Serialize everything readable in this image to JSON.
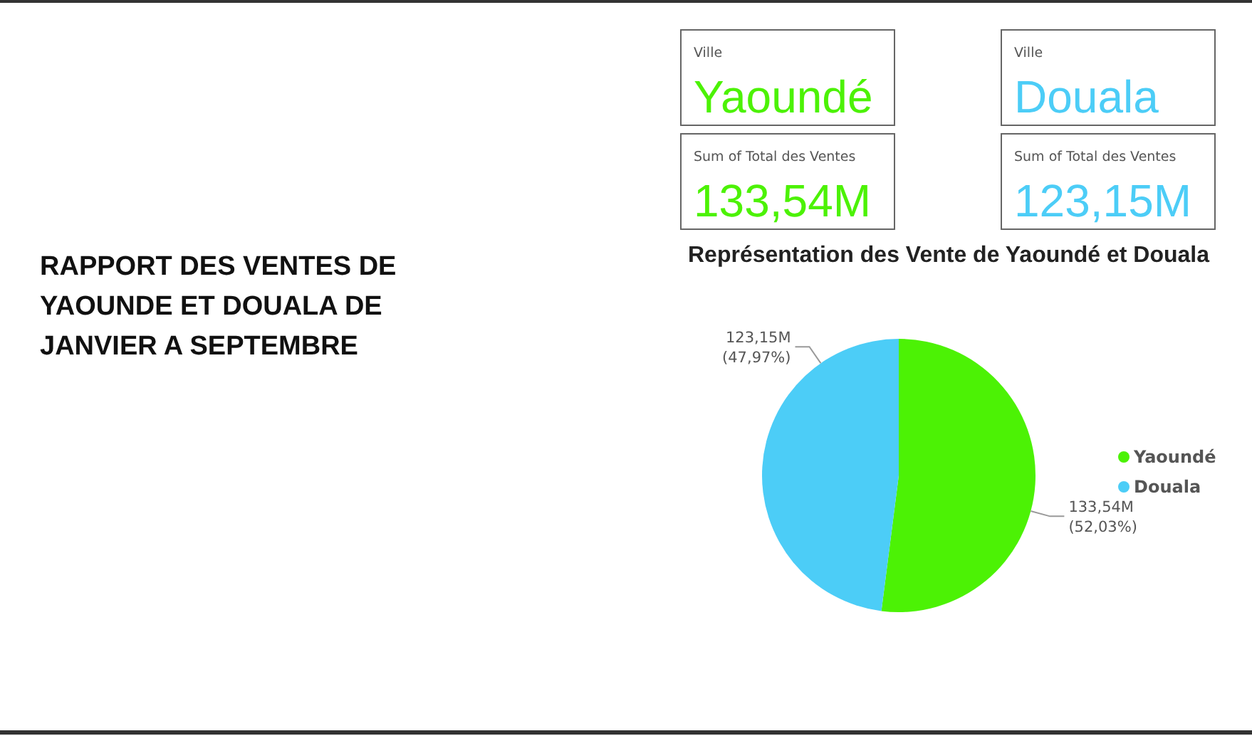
{
  "chart_data": [
    {
      "type": "other",
      "title": "RAPPORT DES VENTES DE YAOUNDE ET DOUALA DE JANVIER A SEPTEMBRE"
    },
    {
      "type": "other",
      "xlabel": "Ville",
      "ylabel": "Sum of Total des Ventes",
      "categories": [
        "Yaoundé",
        "Douala"
      ],
      "value_labels": [
        "133,54M",
        "123,15M"
      ],
      "colors": [
        "#4cf205",
        "#4ccdf7"
      ]
    },
    {
      "type": "pie",
      "title": "Représentation des Vente de Yaoundé et Douala",
      "categories": [
        "Yaoundé",
        "Douala"
      ],
      "values": [
        52.03,
        47.97
      ],
      "value_labels": [
        "133,54M (52,03%)",
        "123,15M (47,97%)"
      ],
      "colors": [
        "#4cf205",
        "#4ccdf7"
      ],
      "legend": "right"
    }
  ]
}
